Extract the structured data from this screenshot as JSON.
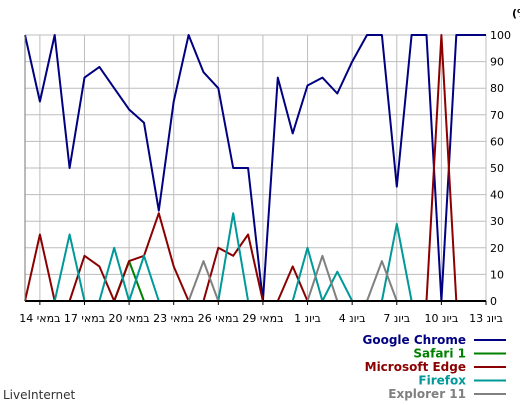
{
  "chart_data": {
    "type": "line",
    "ylabel": "חלק (%)",
    "ylim": [
      0,
      100
    ],
    "yticks": [
      0,
      10,
      20,
      30,
      40,
      50,
      60,
      70,
      80,
      90,
      100
    ],
    "grid": true,
    "x_ticks": [
      {
        "label": "13 ביונ",
        "i": 0
      },
      {
        "label": "10 ביונ",
        "i": 3
      },
      {
        "label": "7 ביונ",
        "i": 6
      },
      {
        "label": "4 ביונ",
        "i": 9
      },
      {
        "label": "1 ביונ",
        "i": 12
      },
      {
        "label": "29 במאי",
        "i": 15
      },
      {
        "label": "26 במאי",
        "i": 18
      },
      {
        "label": "23 במאי",
        "i": 21
      },
      {
        "label": "20 במאי",
        "i": 24
      },
      {
        "label": "17 במאי",
        "i": 27
      },
      {
        "label": "14 במאי",
        "i": 30
      }
    ],
    "series": [
      {
        "name": "Google Chrome",
        "color": "#000080",
        "values": [
          100,
          100,
          100,
          0,
          100,
          100,
          43,
          100,
          100,
          90,
          78,
          84,
          81,
          63,
          84,
          0,
          50,
          50,
          80,
          86,
          100,
          75,
          34,
          67,
          72,
          80,
          88,
          84,
          50,
          100,
          75,
          100
        ]
      },
      {
        "name": "Safari 1",
        "color": "#008000",
        "values": [
          0,
          0,
          0,
          0,
          0,
          0,
          0,
          0,
          0,
          0,
          0,
          0,
          0,
          0,
          0,
          0,
          0,
          0,
          0,
          0,
          0,
          0,
          0,
          0,
          15,
          0,
          0,
          0,
          0,
          0,
          0,
          0
        ]
      },
      {
        "name": "Microsoft Edge",
        "color": "#8b0000",
        "values": [
          0,
          0,
          0,
          100,
          0,
          0,
          0,
          0,
          0,
          0,
          0,
          0,
          0,
          13,
          0,
          0,
          25,
          17,
          20,
          0,
          0,
          13,
          33,
          17,
          15,
          0,
          13,
          17,
          0,
          0,
          25,
          0
        ]
      },
      {
        "name": "Firefox",
        "color": "#009999",
        "values": [
          0,
          0,
          0,
          0,
          0,
          0,
          29,
          0,
          0,
          0,
          11,
          0,
          20,
          0,
          0,
          0,
          0,
          33,
          0,
          0,
          0,
          0,
          0,
          17,
          0,
          20,
          0,
          0,
          25,
          0,
          0,
          0
        ]
      },
      {
        "name": "Explorer 11",
        "color": "#808080",
        "values": [
          0,
          0,
          0,
          0,
          0,
          0,
          0,
          15,
          0,
          0,
          0,
          17,
          0,
          0,
          0,
          0,
          0,
          0,
          0,
          15,
          0,
          0,
          0,
          0,
          0,
          0,
          0,
          0,
          0,
          0,
          0,
          0
        ]
      }
    ]
  },
  "footer": {
    "brand": "LiveInternet"
  }
}
